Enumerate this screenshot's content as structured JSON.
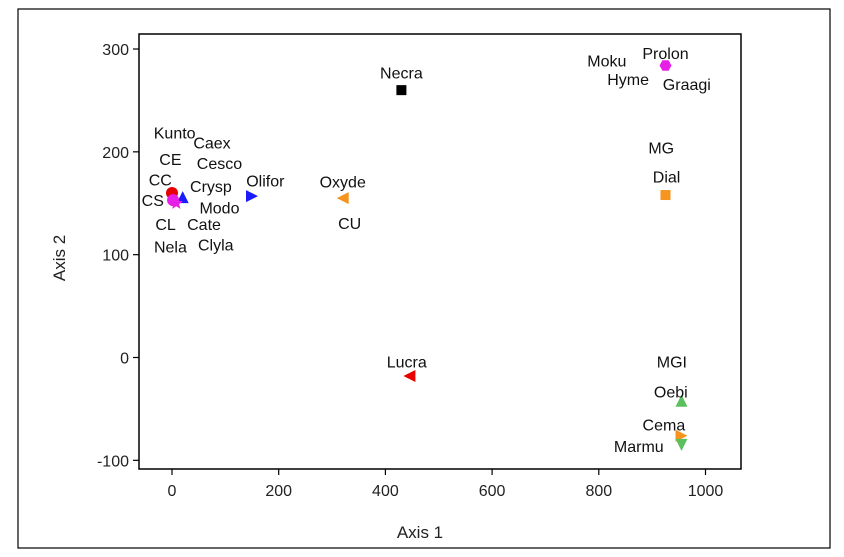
{
  "chart_data": {
    "type": "scatter",
    "title": "",
    "xlabel": "Axis 1",
    "ylabel": "Axis 2",
    "xlim": [
      -60,
      1010
    ],
    "ylim": [
      -110,
      305
    ],
    "xticks": [
      0,
      200,
      400,
      600,
      800,
      1000
    ],
    "yticks": [
      300,
      200,
      100,
      0,
      -100
    ],
    "xtick_labels": [
      "0",
      "200",
      "400",
      "600",
      "800",
      "1000"
    ],
    "ytick_labels": [
      "300",
      "200",
      "100",
      "0",
      "-100"
    ],
    "grid": false,
    "legend": "none",
    "points": [
      {
        "x": 430,
        "y": 260,
        "marker": "square",
        "color": "#000000"
      },
      {
        "x": 925,
        "y": 284,
        "marker": "hexagon",
        "color": "#e61ee6"
      },
      {
        "x": 925,
        "y": 158,
        "marker": "square",
        "color": "#f7941d"
      },
      {
        "x": 320,
        "y": 155,
        "marker": "triangle-left",
        "color": "#f7941d"
      },
      {
        "x": 150,
        "y": 157,
        "marker": "triangle-right",
        "color": "#1a1aff"
      },
      {
        "x": 20,
        "y": 156,
        "marker": "triangle-up",
        "color": "#1a1aff"
      },
      {
        "x": 0,
        "y": 160,
        "marker": "circle",
        "color": "#e60000"
      },
      {
        "x": 2,
        "y": 153,
        "marker": "circle",
        "color": "#e61ee6"
      },
      {
        "x": 8,
        "y": 150,
        "marker": "star",
        "color": "#e61ee6"
      },
      {
        "x": 445,
        "y": -18,
        "marker": "triangle-left",
        "color": "#e60000"
      },
      {
        "x": 955,
        "y": -42,
        "marker": "triangle-up",
        "color": "#5cc05c"
      },
      {
        "x": 955,
        "y": -76,
        "marker": "triangle-right",
        "color": "#f7941d"
      },
      {
        "x": 955,
        "y": -85,
        "marker": "triangle-down",
        "color": "#5cc05c"
      }
    ],
    "labels": [
      {
        "text": "Necra",
        "x": 430,
        "y": 277
      },
      {
        "text": "Prolon",
        "x": 925,
        "y": 296
      },
      {
        "text": "Moku",
        "x": 815,
        "y": 289
      },
      {
        "text": "Hyme",
        "x": 855,
        "y": 271
      },
      {
        "text": "Graagi",
        "x": 965,
        "y": 266
      },
      {
        "text": "MG",
        "x": 917,
        "y": 204
      },
      {
        "text": "Dial",
        "x": 927,
        "y": 176
      },
      {
        "text": "Oxyde",
        "x": 320,
        "y": 171
      },
      {
        "text": "CU",
        "x": 333,
        "y": 131
      },
      {
        "text": "Olifor",
        "x": 175,
        "y": 172
      },
      {
        "text": "Kunto",
        "x": 5,
        "y": 219
      },
      {
        "text": "Caex",
        "x": 75,
        "y": 209
      },
      {
        "text": "CE",
        "x": -3,
        "y": 193
      },
      {
        "text": "Cesco",
        "x": 89,
        "y": 189
      },
      {
        "text": "CC",
        "x": -22,
        "y": 173
      },
      {
        "text": "Crysp",
        "x": 73,
        "y": 167
      },
      {
        "text": "CS",
        "x": -36,
        "y": 153
      },
      {
        "text": "Modo",
        "x": 89,
        "y": 146
      },
      {
        "text": "CL",
        "x": -12,
        "y": 130
      },
      {
        "text": "Cate",
        "x": 60,
        "y": 130
      },
      {
        "text": "Nela",
        "x": -3,
        "y": 108
      },
      {
        "text": "Clyla",
        "x": 82,
        "y": 110
      },
      {
        "text": "Lucra",
        "x": 440,
        "y": -4
      },
      {
        "text": "MGI",
        "x": 937,
        "y": -4
      },
      {
        "text": "Oebi",
        "x": 935,
        "y": -33
      },
      {
        "text": "Cema",
        "x": 922,
        "y": -65
      },
      {
        "text": "Marmu",
        "x": 875,
        "y": -86
      }
    ]
  }
}
